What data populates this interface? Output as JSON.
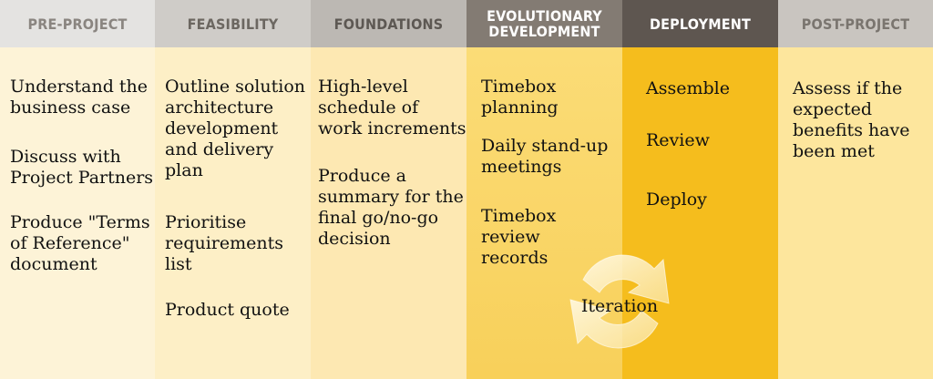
{
  "colors": {
    "pre_header_bg": "#e4e3e1",
    "feasibility_header_bg": "#cfccc8",
    "foundations_header_bg": "#bcb8b3",
    "evolutionary_header_bg": "#837b73",
    "deployment_header_bg": "#5e5650",
    "post_header_bg": "#c9c5c0",
    "pre_body_bg": "#fdf3d7",
    "feasibility_body_bg": "#fdefc6",
    "foundations_body_bg": "#fde8b2",
    "evolutionary_body_bg": "#f9d257",
    "deployment_body_bg": "#f5bd1d",
    "post_body_bg": "#fde69d"
  },
  "phases": [
    {
      "header": "PRE-PROJECT",
      "items": [
        "Understand the\nbusiness case",
        "Discuss with\nProject Partners",
        "Produce \"Terms\nof Reference\"\ndocument"
      ]
    },
    {
      "header": "FEASIBILITY",
      "items": [
        "Outline solution\narchitecture\ndevelopment\nand delivery\nplan",
        "Prioritise\nrequirements\nlist",
        "Product quote"
      ]
    },
    {
      "header": "FOUNDATIONS",
      "items": [
        "High-level\nschedule of\nwork increments",
        "Produce a\nsummary for the\nfinal go/no-go\ndecision"
      ]
    },
    {
      "header": "EVOLUTIONARY\nDEVELOPMENT",
      "items": [
        "Timebox\nplanning",
        "Daily stand-up\nmeetings",
        "Timebox\nreview\nrecords"
      ]
    },
    {
      "header": "DEPLOYMENT",
      "items": [
        "Assemble",
        "Review",
        "Deploy"
      ]
    },
    {
      "header": "POST-PROJECT",
      "items": [
        "Assess if the\nexpected\nbenefits have\nbeen met"
      ]
    }
  ],
  "iteration": {
    "label": "Iteration",
    "icon": "circular-arrows-icon"
  }
}
